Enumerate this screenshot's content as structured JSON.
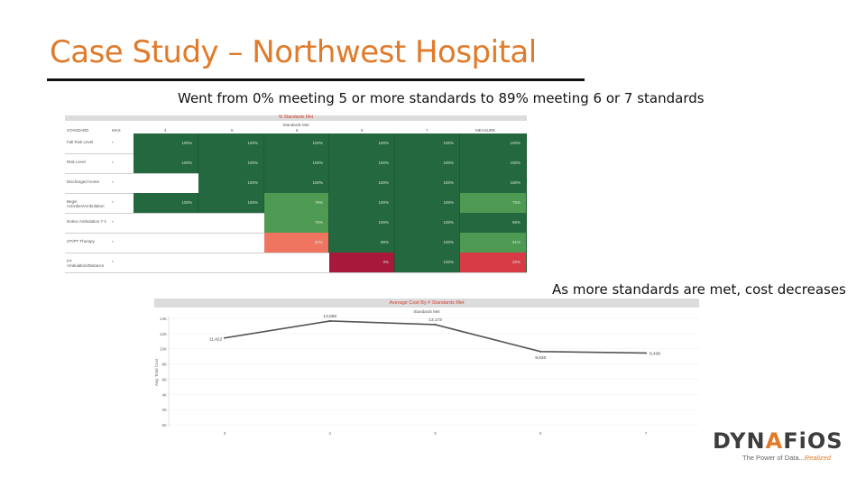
{
  "slide": {
    "title": "Case Study – Northwest Hospital",
    "heatmap_caption": "Went from 0% meeting 5 or more standards to 89% meeting 6 or 7 standards",
    "linechart_caption": "As more standards are met, cost decreases"
  },
  "heatmap": {
    "title": "% Standards Met",
    "subtitle": "Standards Met",
    "col_headers": [
      "STANDARD",
      "MAX",
      "4",
      "5",
      "6",
      "6",
      "7",
      "MEASURE"
    ],
    "rows": [
      {
        "label": "Fall Risk Level",
        "val": "*"
      },
      {
        "label": "Risk Level",
        "val": "*"
      },
      {
        "label": "Discharged Home",
        "val": "*"
      },
      {
        "label": "Begin Activities/Ambulation",
        "val": "*"
      },
      {
        "label": "Notice Ambulation 7-1",
        "val": "*"
      },
      {
        "label": "OT/PT Therapy",
        "val": "*"
      },
      {
        "label": "PT Ambulation/Distance",
        "val": "*"
      }
    ],
    "cells": [
      [
        "",
        "100%",
        "100%",
        "100%",
        "100%",
        "100%",
        "100%"
      ],
      [
        "",
        "100%",
        "100%",
        "100%",
        "100%",
        "100%",
        "100%"
      ],
      [
        "",
        "",
        "100%",
        "100%",
        "100%",
        "100%",
        "100%"
      ],
      [
        "",
        "100%",
        "100%",
        "76%",
        "100%",
        "100%",
        "75%"
      ],
      [
        "",
        "",
        "",
        "75%",
        "100%",
        "100%",
        "95%"
      ],
      [
        "",
        "",
        "",
        "50%",
        "89%",
        "100%",
        "81%"
      ],
      [
        "",
        "",
        "",
        "",
        "3%",
        "100%",
        "20%"
      ]
    ],
    "colors": {
      "dark": "#23683f",
      "mid": "#4f9a52",
      "salmon": "#f07560",
      "crimson": "#a8183a",
      "red": "#d93b46"
    }
  },
  "chart_data": {
    "type": "line",
    "title": "Average Cost By # Standards Met",
    "subtitle": "Standards Met",
    "ylabel": "Avg. Total Cost",
    "categories": [
      "3",
      "4",
      "5",
      "6",
      "7"
    ],
    "values": [
      11422,
      13656,
      13173,
      9630,
      9436
    ],
    "value_labels": [
      "11,422",
      "13,656",
      "13,173",
      "9,630",
      "9,436"
    ],
    "yticks": [
      "14K",
      "12K",
      "10K",
      "8K",
      "6K",
      "4K",
      "2K",
      "0K"
    ],
    "ylim": [
      0,
      14000
    ],
    "color": "#555555"
  },
  "logo": {
    "text_a": "DYN",
    "text_b": "A",
    "text_c": "FiOS",
    "tagline_a": "The Power of Data...",
    "tagline_b": "Realized"
  }
}
